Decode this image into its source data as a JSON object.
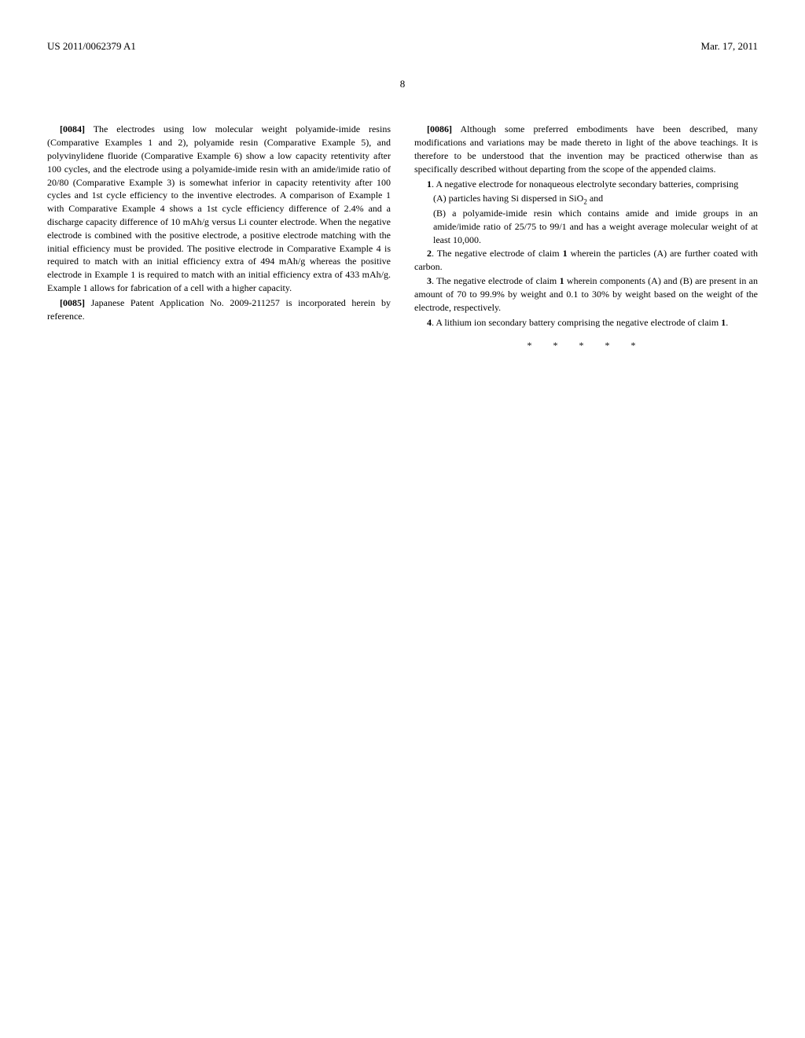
{
  "header": {
    "left": "US 2011/0062379 A1",
    "right": "Mar. 17, 2011"
  },
  "page_number": "8",
  "left_column": {
    "paragraphs": [
      {
        "number": "[0084]",
        "text": "The electrodes using low molecular weight polyamide-imide resins (Comparative Examples 1 and 2), polyamide resin (Comparative Example 5), and polyvinylidene fluoride (Comparative Example 6) show a low capacity retentivity after 100 cycles, and the electrode using a polyamide-imide resin with an amide/imide ratio of 20/80 (Comparative Example 3) is somewhat inferior in capacity retentivity after 100 cycles and 1st cycle efficiency to the inventive electrodes. A comparison of Example 1 with Comparative Example 4 shows a 1st cycle efficiency difference of 2.4% and a discharge capacity difference of 10 mAh/g versus Li counter electrode. When the negative electrode is combined with the positive electrode, a positive electrode matching with the initial efficiency must be provided. The positive electrode in Comparative Example 4 is required to match with an initial efficiency extra of 494 mAh/g whereas the positive electrode in Example 1 is required to match with an initial efficiency extra of 433 mAh/g. Example 1 allows for fabrication of a cell with a higher capacity."
      },
      {
        "number": "[0085]",
        "text": "Japanese Patent Application No. 2009-211257 is incorporated herein by reference."
      }
    ]
  },
  "right_column": {
    "paragraphs": [
      {
        "number": "[0086]",
        "text": "Although some preferred embodiments have been described, many modifications and variations may be made thereto in light of the above teachings. It is therefore to be understood that the invention may be practiced otherwise than as specifically described without departing from the scope of the appended claims."
      }
    ],
    "claims": [
      {
        "number": "1",
        "text": ". A negative electrode for nonaqueous electrolyte secondary batteries, comprising",
        "items": [
          "(A) particles having Si dispersed in SiO₂ and",
          "(B) a polyamide-imide resin which contains amide and imide groups in an amide/imide ratio of 25/75 to 99/1 and has a weight average molecular weight of at least 10,000."
        ]
      },
      {
        "number": "2",
        "text": ". The negative electrode of claim ",
        "ref": "1",
        "text_after": " wherein the particles (A) are further coated with carbon."
      },
      {
        "number": "3",
        "text": ". The negative electrode of claim ",
        "ref": "1",
        "text_after": " wherein components (A) and (B) are present in an amount of 70 to 99.9% by weight and 0.1 to 30% by weight based on the weight of the electrode, respectively."
      },
      {
        "number": "4",
        "text": ". A lithium ion secondary battery comprising the negative electrode of claim ",
        "ref": "1",
        "text_after": "."
      }
    ]
  },
  "asterisks": "* * * * *"
}
